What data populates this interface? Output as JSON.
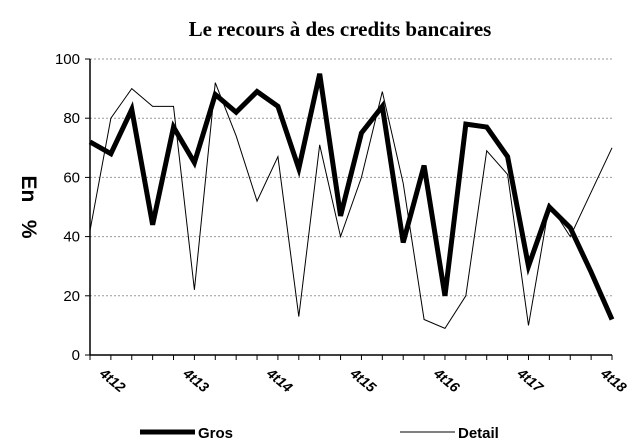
{
  "chart_data": {
    "type": "line",
    "title": "Le recours à des credits bancaires",
    "y_label": "En   %",
    "categories": [
      null,
      "4t12",
      null,
      null,
      null,
      "4t13",
      null,
      null,
      null,
      "4t14",
      null,
      null,
      null,
      "4t15",
      null,
      null,
      null,
      "4t16",
      null,
      null,
      null,
      "4t17",
      null,
      null,
      null,
      "4t18"
    ],
    "series": [
      {
        "name": "Gros",
        "color": "#000000",
        "values": [
          72,
          68,
          83,
          44,
          77,
          65,
          88,
          82,
          89,
          84,
          63,
          95,
          47,
          75,
          84,
          38,
          64,
          20,
          78,
          77,
          67,
          30,
          50,
          43,
          28,
          12
        ]
      },
      {
        "name": "Detail",
        "color": "#000000",
        "values": [
          42,
          80,
          90,
          84,
          84,
          22,
          92,
          74,
          52,
          67,
          13,
          71,
          40,
          60,
          89,
          58,
          12,
          9,
          20,
          69,
          61,
          10,
          51,
          40,
          55,
          70
        ]
      }
    ],
    "ylim": [
      0,
      100
    ],
    "yticks": [
      0,
      20,
      40,
      60,
      80,
      100
    ],
    "grid": true,
    "legend": "bottom"
  }
}
